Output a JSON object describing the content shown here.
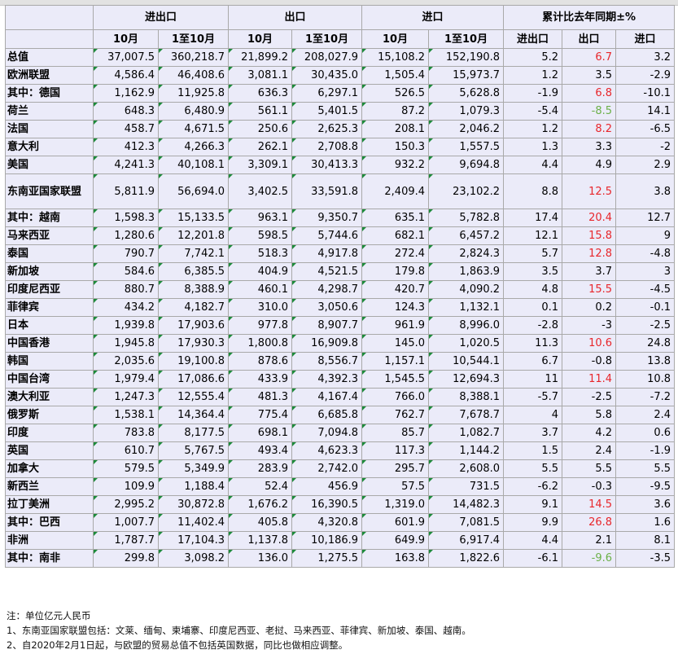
{
  "headers": {
    "groups": [
      "进出口",
      "出口",
      "进口",
      "累计比去年同期±%"
    ],
    "sub": [
      "10月",
      "1至10月",
      "10月",
      "1至10月",
      "10月",
      "1至10月",
      "进出口",
      "出口",
      "进口"
    ]
  },
  "rows": [
    {
      "name": "总值",
      "v": [
        "37,007.5",
        "360,218.7",
        "21,899.2",
        "208,027.9",
        "15,108.2",
        "152,190.8",
        "5.2",
        "6.7",
        "3.2"
      ],
      "exp_color": "red"
    },
    {
      "name": "欧洲联盟",
      "v": [
        "4,586.4",
        "46,408.6",
        "3,081.1",
        "30,435.0",
        "1,505.4",
        "15,973.7",
        "1.2",
        "3.5",
        "-2.9"
      ],
      "exp_color": ""
    },
    {
      "name": "其中：德国",
      "v": [
        "1,162.9",
        "11,925.8",
        "636.3",
        "6,297.1",
        "526.5",
        "5,628.8",
        "-1.9",
        "6.8",
        "-10.1"
      ],
      "exp_color": "red"
    },
    {
      "name": "荷兰",
      "v": [
        "648.3",
        "6,480.9",
        "561.1",
        "5,401.5",
        "87.2",
        "1,079.3",
        "-5.4",
        "-8.5",
        "14.1"
      ],
      "exp_color": "green"
    },
    {
      "name": "法国",
      "v": [
        "458.7",
        "4,671.5",
        "250.6",
        "2,625.3",
        "208.1",
        "2,046.2",
        "1.2",
        "8.2",
        "-6.5"
      ],
      "exp_color": "red"
    },
    {
      "name": "意大利",
      "v": [
        "412.3",
        "4,266.3",
        "262.1",
        "2,708.8",
        "150.3",
        "1,557.5",
        "1.3",
        "3.3",
        "-2"
      ],
      "exp_color": ""
    },
    {
      "name": "美国",
      "v": [
        "4,241.3",
        "40,108.1",
        "3,309.1",
        "30,413.3",
        "932.2",
        "9,694.8",
        "4.4",
        "4.9",
        "2.9"
      ],
      "exp_color": ""
    },
    {
      "name": "东南亚国家联盟",
      "v": [
        "5,811.9",
        "56,694.0",
        "3,402.5",
        "33,591.8",
        "2,409.4",
        "23,102.2",
        "8.8",
        "12.5",
        "3.8"
      ],
      "exp_color": "red",
      "tall": true
    },
    {
      "name": "其中：越南",
      "v": [
        "1,598.3",
        "15,133.5",
        "963.1",
        "9,350.7",
        "635.1",
        "5,782.8",
        "17.4",
        "20.4",
        "12.7"
      ],
      "exp_color": "red"
    },
    {
      "name": "马来西亚",
      "v": [
        "1,280.6",
        "12,201.8",
        "598.5",
        "5,744.6",
        "682.1",
        "6,457.2",
        "12.1",
        "15.8",
        "9"
      ],
      "exp_color": "red"
    },
    {
      "name": "泰国",
      "v": [
        "790.7",
        "7,742.1",
        "518.3",
        "4,917.8",
        "272.4",
        "2,824.3",
        "5.7",
        "12.8",
        "-4.8"
      ],
      "exp_color": "red"
    },
    {
      "name": "新加坡",
      "v": [
        "584.6",
        "6,385.5",
        "404.9",
        "4,521.5",
        "179.8",
        "1,863.9",
        "3.5",
        "3.7",
        "3"
      ],
      "exp_color": ""
    },
    {
      "name": "印度尼西亚",
      "v": [
        "880.7",
        "8,388.9",
        "460.1",
        "4,298.7",
        "420.7",
        "4,090.2",
        "4.8",
        "15.5",
        "-4.5"
      ],
      "exp_color": "red"
    },
    {
      "name": "菲律宾",
      "v": [
        "434.2",
        "4,182.7",
        "310.0",
        "3,050.6",
        "124.3",
        "1,132.1",
        "0.1",
        "0.2",
        "-0.1"
      ],
      "exp_color": ""
    },
    {
      "name": "日本",
      "v": [
        "1,939.8",
        "17,903.6",
        "977.8",
        "8,907.7",
        "961.9",
        "8,996.0",
        "-2.8",
        "-3",
        "-2.5"
      ],
      "exp_color": ""
    },
    {
      "name": "中国香港",
      "v": [
        "1,945.8",
        "17,930.3",
        "1,800.8",
        "16,909.8",
        "145.0",
        "1,020.5",
        "11.3",
        "10.6",
        "24.8"
      ],
      "exp_color": "red"
    },
    {
      "name": "韩国",
      "v": [
        "2,035.6",
        "19,100.8",
        "878.6",
        "8,556.7",
        "1,157.1",
        "10,544.1",
        "6.7",
        "-0.8",
        "13.8"
      ],
      "exp_color": ""
    },
    {
      "name": "中国台湾",
      "v": [
        "1,979.4",
        "17,086.6",
        "433.9",
        "4,392.3",
        "1,545.5",
        "12,694.3",
        "11",
        "11.4",
        "10.8"
      ],
      "exp_color": "red"
    },
    {
      "name": "澳大利亚",
      "v": [
        "1,247.3",
        "12,555.4",
        "481.3",
        "4,167.4",
        "766.0",
        "8,388.1",
        "-5.7",
        "-2.5",
        "-7.2"
      ],
      "exp_color": ""
    },
    {
      "name": "俄罗斯",
      "v": [
        "1,538.1",
        "14,364.4",
        "775.4",
        "6,685.8",
        "762.7",
        "7,678.7",
        "4",
        "5.8",
        "2.4"
      ],
      "exp_color": ""
    },
    {
      "name": "印度",
      "v": [
        "783.8",
        "8,177.5",
        "698.1",
        "7,094.8",
        "85.7",
        "1,082.7",
        "3.7",
        "4.2",
        "0.6"
      ],
      "exp_color": ""
    },
    {
      "name": "英国",
      "v": [
        "610.7",
        "5,767.5",
        "493.4",
        "4,623.3",
        "117.3",
        "1,144.2",
        "1.5",
        "2.4",
        "-1.9"
      ],
      "exp_color": ""
    },
    {
      "name": "加拿大",
      "v": [
        "579.5",
        "5,349.9",
        "283.9",
        "2,742.0",
        "295.7",
        "2,608.0",
        "5.5",
        "5.5",
        "5.5"
      ],
      "exp_color": ""
    },
    {
      "name": "新西兰",
      "v": [
        "109.9",
        "1,188.4",
        "52.4",
        "456.9",
        "57.5",
        "731.5",
        "-6.2",
        "-0.3",
        "-9.5"
      ],
      "exp_color": ""
    },
    {
      "name": "拉丁美洲",
      "v": [
        "2,995.2",
        "30,872.8",
        "1,676.2",
        "16,390.5",
        "1,319.0",
        "14,482.3",
        "9.1",
        "14.5",
        "3.6"
      ],
      "exp_color": "red"
    },
    {
      "name": "其中：巴西",
      "v": [
        "1,007.7",
        "11,402.4",
        "405.8",
        "4,320.8",
        "601.9",
        "7,081.5",
        "9.9",
        "26.8",
        "1.6"
      ],
      "exp_color": "red"
    },
    {
      "name": "非洲",
      "v": [
        "1,787.7",
        "17,104.3",
        "1,137.8",
        "10,186.9",
        "649.9",
        "6,917.4",
        "4.4",
        "2.1",
        "8.1"
      ],
      "exp_color": ""
    },
    {
      "name": "其中：南非",
      "v": [
        "299.8",
        "3,098.2",
        "136.0",
        "1,275.5",
        "163.8",
        "1,822.6",
        "-6.1",
        "-9.6",
        "-3.5"
      ],
      "exp_color": "green"
    }
  ],
  "notes": {
    "line1": "注：单位亿元人民币",
    "line2": "1、东南亚国家联盟包括：文莱、缅甸、柬埔寨、印度尼西亚、老挝、马来西亚、菲律宾、新加坡、泰国、越南。",
    "line3": "2、自2020年2月1日起，与欧盟的贸易总值不包括英国数据，同比也做相应调整。"
  },
  "colors": {
    "red": "#e8262b",
    "green": "#6bb048",
    "table_bg": "#ebebf9",
    "border": "#a9a9a9",
    "marker": "#1c8a3a"
  }
}
